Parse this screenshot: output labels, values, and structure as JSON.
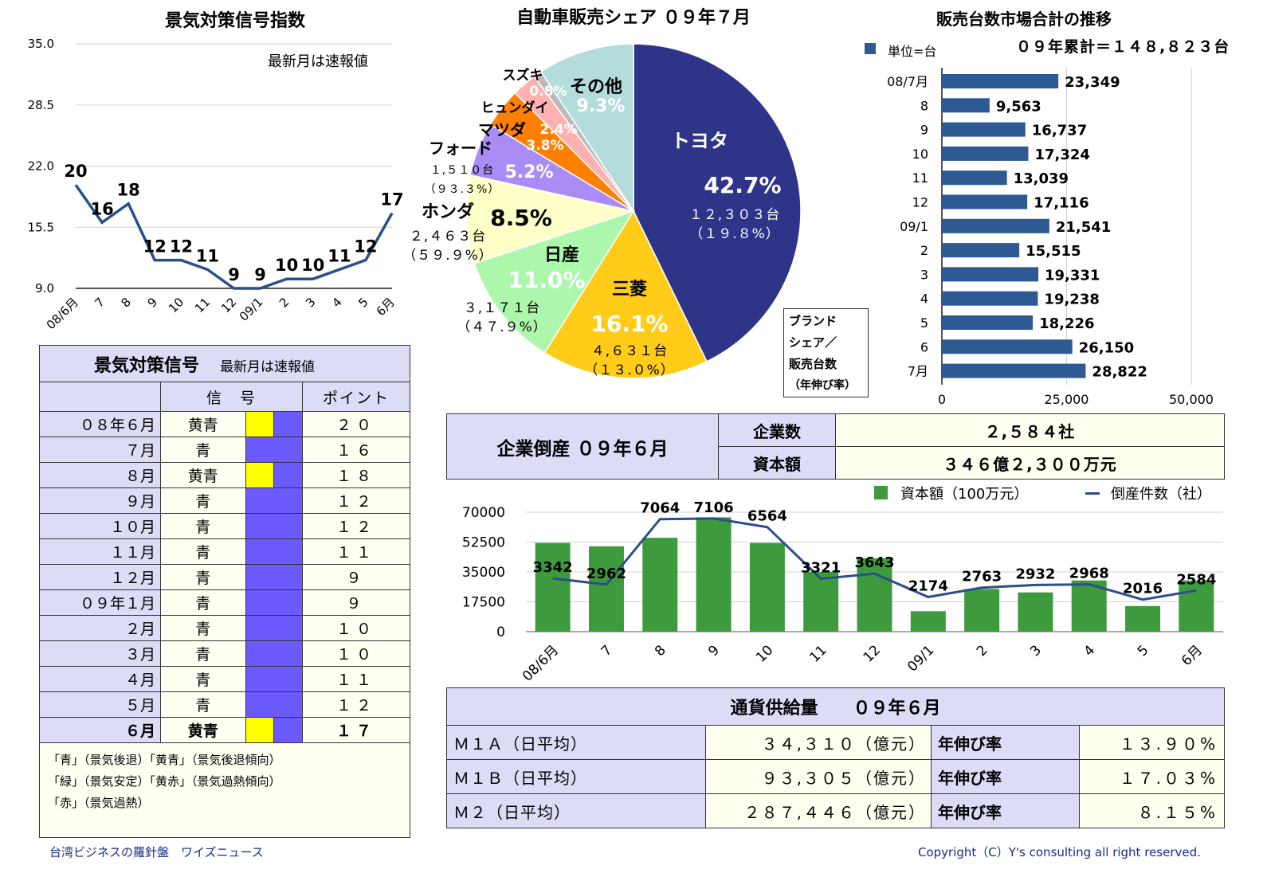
{
  "signal_chart": {
    "title": "景気対策信号指数",
    "note": "最新月は速報値"
  },
  "pie_section": {
    "title": "自動車販売シェア ０９年７月",
    "brand_box": [
      "ブランド",
      "シェア／",
      "販売台数",
      "（年伸び率）"
    ]
  },
  "bar_section": {
    "title": "販売台数市場合計の推移",
    "legend": "単位=台",
    "cumulative": "０９年累計＝１４８,８２３台"
  },
  "signal_table": {
    "title": "景気対策信号",
    "note": "最新月は速報値",
    "col_signal": "信　号",
    "col_point": "ポイント",
    "rows": [
      {
        "month": "０８年６月",
        "signal": "黄青",
        "point": "２０",
        "yellow": true
      },
      {
        "month": "７月",
        "signal": "青",
        "point": "１６",
        "yellow": false
      },
      {
        "month": "８月",
        "signal": "黄青",
        "point": "１８",
        "yellow": true
      },
      {
        "month": "９月",
        "signal": "青",
        "point": "１２",
        "yellow": false
      },
      {
        "month": "１０月",
        "signal": "青",
        "point": "１２",
        "yellow": false
      },
      {
        "month": "１１月",
        "signal": "青",
        "point": "１１",
        "yellow": false
      },
      {
        "month": "１２月",
        "signal": "青",
        "point": "９",
        "yellow": false
      },
      {
        "month": "０９年１月",
        "signal": "青",
        "point": "９",
        "yellow": false
      },
      {
        "month": "２月",
        "signal": "青",
        "point": "１０",
        "yellow": false
      },
      {
        "month": "３月",
        "signal": "青",
        "point": "１０",
        "yellow": false
      },
      {
        "month": "４月",
        "signal": "青",
        "point": "１１",
        "yellow": false
      },
      {
        "month": "５月",
        "signal": "青",
        "point": "１２",
        "yellow": false
      },
      {
        "month": "６月",
        "signal": "黄青",
        "point": "１７",
        "yellow": true,
        "bold": true
      }
    ],
    "legend": [
      "「青」（景気後退）「黄青」（景気後退傾向）",
      "「緑」（景気安定）「黄赤」（景気過熱傾向）",
      "「赤」（景気過熱）"
    ]
  },
  "bankruptcy": {
    "title": "企業倒産 ０９年６月",
    "label_count": "企業数",
    "value_count": "２,５８４社",
    "label_capital": "資本額",
    "value_capital": "３４６億２,３００万元"
  },
  "money_supply": {
    "title": "通貨供給量　　０９年６月",
    "growth_label": "年伸び率",
    "rows": [
      {
        "name": "Ｍ１Ａ（日平均）",
        "amount": "３４,３１０（億元）",
        "growth": "１３.９０%"
      },
      {
        "name": "Ｍ１Ｂ（日平均）",
        "amount": "９３,３０５（億元）",
        "growth": "１７.０３%"
      },
      {
        "name": "Ｍ２（日平均）",
        "amount": "２８７,４４６（億元）",
        "growth": "８.１５%"
      }
    ]
  },
  "footer": {
    "left": "台湾ビジネスの羅針盤　ワイズニュース",
    "right": "Copyright（C）Y's consulting all right reserved."
  },
  "chart_data": [
    {
      "type": "line",
      "id": "signal",
      "title": "景気対策信号指数",
      "categories": [
        "08/6月",
        "7",
        "8",
        "9",
        "10",
        "11",
        "12",
        "09/1",
        "2",
        "3",
        "4",
        "5",
        "6月"
      ],
      "values": [
        20,
        16,
        18,
        12,
        12,
        11,
        9,
        9,
        10,
        10,
        11,
        12,
        17
      ],
      "yticks": [
        "35.0",
        "28.5",
        "22.0",
        "15.5",
        "9.0"
      ],
      "ylim": [
        9,
        35
      ],
      "color": "#2b4f8a"
    },
    {
      "type": "pie",
      "id": "share",
      "title": "自動車販売シェア ０９年７月",
      "slices": [
        {
          "name": "トヨタ",
          "value": 42.7,
          "pct": "42.7%",
          "detail": [
            "１２,３０３台",
            "（１９.８%）"
          ],
          "color": "#2e3589"
        },
        {
          "name": "三菱",
          "value": 16.1,
          "pct": "16.1%",
          "detail": [
            "４,６３１台",
            "（１３.０%）"
          ],
          "color": "#ffcc1a"
        },
        {
          "name": "日産",
          "value": 11.0,
          "pct": "11.0%",
          "detail": [
            "３,１７１台",
            "（４７.９%）"
          ],
          "color": "#adf7ad"
        },
        {
          "name": "ホンダ",
          "value": 8.5,
          "pct": "8.5%",
          "detail": [
            "２,４６３台",
            "（５９.９%）"
          ],
          "color": "#ffffc8"
        },
        {
          "name": "フォード",
          "value": 5.2,
          "pct": "5.2%",
          "detail": [
            "１,５１０台",
            "（９３.３%）"
          ],
          "color": "#a98cf5"
        },
        {
          "name": "マツダ",
          "value": 3.8,
          "pct": "3.8%",
          "detail": [],
          "color": "#ff8000"
        },
        {
          "name": "ヒュンダイ",
          "value": 2.4,
          "pct": "2.4%",
          "detail": [],
          "color": "#ffb0b0"
        },
        {
          "name": "スズキ",
          "value": 0.8,
          "pct": "0.8%",
          "detail": [],
          "color": "#bbbbbb"
        },
        {
          "name": "その他",
          "value": 9.3,
          "pct": "9.3%",
          "detail": [],
          "color": "#b5dcdc"
        }
      ]
    },
    {
      "type": "bar",
      "id": "sales",
      "title": "販売台数市場合計の推移",
      "orientation": "horizontal",
      "categories": [
        "08/7月",
        "8",
        "9",
        "10",
        "11",
        "12",
        "09/1",
        "2",
        "3",
        "4",
        "5",
        "6",
        "7月"
      ],
      "values": [
        23349,
        9563,
        16737,
        17324,
        13039,
        17116,
        21541,
        15515,
        19331,
        19238,
        18226,
        26150,
        28822
      ],
      "labels": [
        "23,349",
        "9,563",
        "16,737",
        "17,324",
        "13,039",
        "17,116",
        "21,541",
        "15,515",
        "19,331",
        "19,238",
        "18,226",
        "26,150",
        "28,822"
      ],
      "xticks": [
        "0",
        "25,000",
        "50,000"
      ],
      "xlim": [
        0,
        50000
      ],
      "color": "#2e5a94"
    },
    {
      "type": "bar",
      "id": "bankrupt",
      "categories": [
        "08/6月",
        "7",
        "8",
        "9",
        "10",
        "11",
        "12",
        "09/1",
        "2",
        "3",
        "4",
        "5",
        "6月"
      ],
      "series": [
        {
          "name": "資本額（100万元）",
          "type": "bar",
          "values": [
            52000,
            50000,
            55000,
            67000,
            52000,
            35000,
            43000,
            12000,
            25000,
            23000,
            30000,
            15000,
            30000
          ],
          "color": "#3d9b3d"
        },
        {
          "name": "倒産件数（社）",
          "type": "line",
          "values": [
            3342,
            2962,
            7064,
            7106,
            6564,
            3321,
            3643,
            2174,
            2763,
            2932,
            2968,
            2016,
            2584
          ],
          "color": "#2b4f8a"
        }
      ],
      "line_scale_max": 7500,
      "yticks": [
        "70000",
        "52500",
        "35000",
        "17500",
        "0"
      ],
      "ylim": [
        0,
        70000
      ]
    }
  ]
}
